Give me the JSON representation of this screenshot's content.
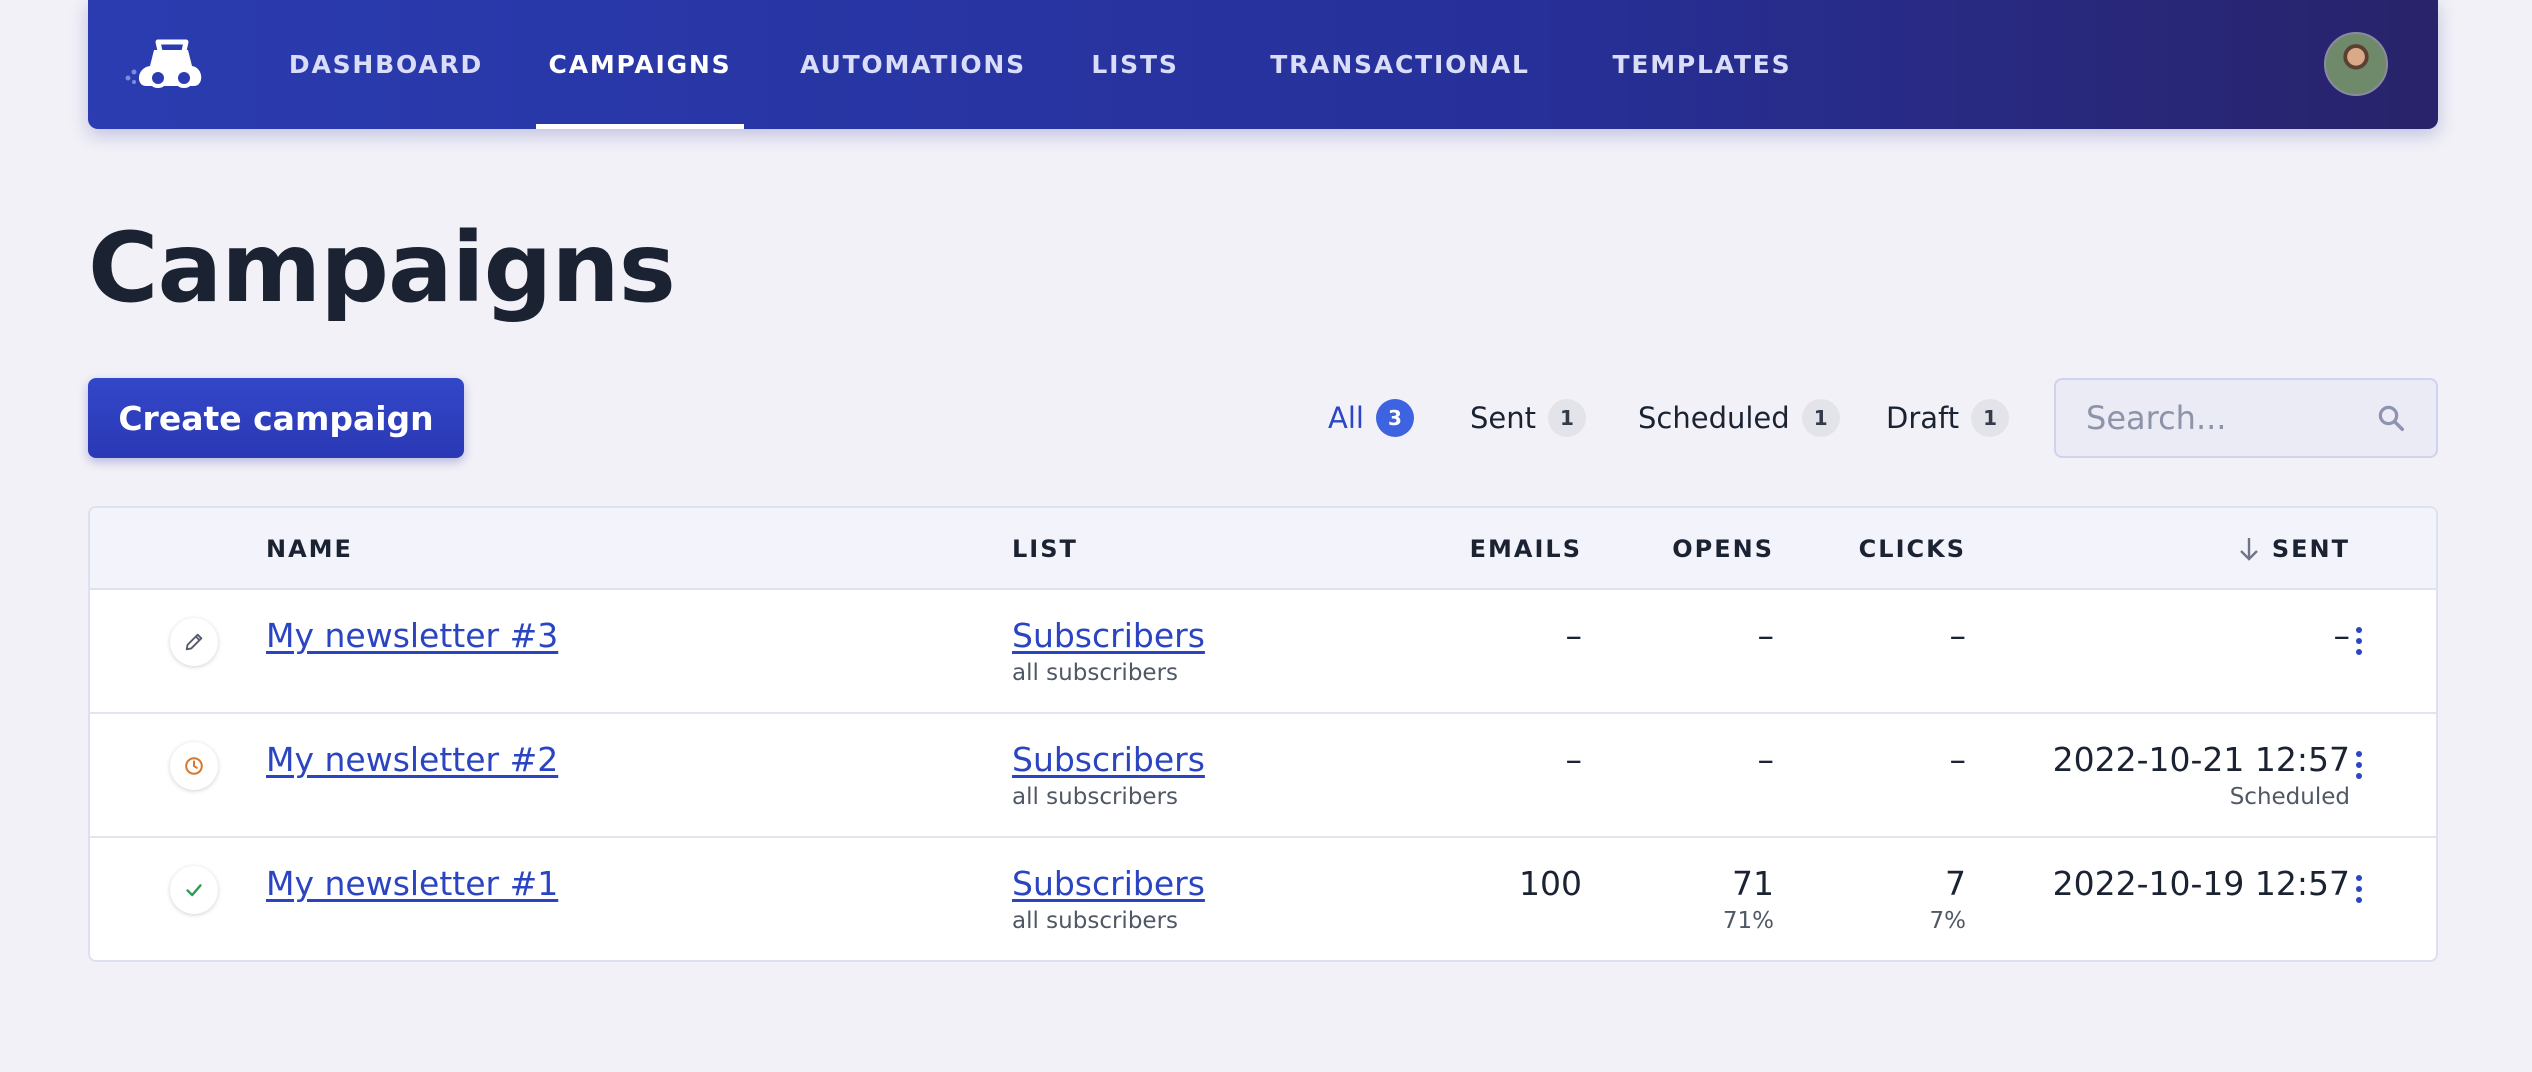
{
  "nav": {
    "items": [
      {
        "label": "DASHBOARD",
        "active": false
      },
      {
        "label": "CAMPAIGNS",
        "active": true
      },
      {
        "label": "AUTOMATIONS",
        "active": false
      },
      {
        "label": "LISTS",
        "active": false
      },
      {
        "label": "TRANSACTIONAL",
        "active": false
      },
      {
        "label": "TEMPLATES",
        "active": false
      }
    ],
    "logo_icon": "mailcoach-logo-icon",
    "avatar_icon": "user-avatar"
  },
  "page": {
    "title": "Campaigns",
    "create_button": "Create campaign"
  },
  "filters": [
    {
      "label": "All",
      "count": "3",
      "active": true
    },
    {
      "label": "Sent",
      "count": "1",
      "active": false
    },
    {
      "label": "Scheduled",
      "count": "1",
      "active": false
    },
    {
      "label": "Draft",
      "count": "1",
      "active": false
    }
  ],
  "search": {
    "placeholder": "Search...",
    "value": "",
    "icon": "search-icon"
  },
  "table": {
    "headers": {
      "name": "NAME",
      "list": "LIST",
      "emails": "EMAILS",
      "opens": "OPENS",
      "clicks": "CLICKS",
      "sent": "SENT"
    },
    "sort_icon": "arrow-down-icon",
    "rows": [
      {
        "status": "draft",
        "status_icon": "pencil-icon",
        "name": "My newsletter #3",
        "list": "Subscribers",
        "segment": "all subscribers",
        "emails": "–",
        "opens": "–",
        "opens_pct": "",
        "clicks": "–",
        "clicks_pct": "",
        "sent": "–",
        "sent_note": ""
      },
      {
        "status": "scheduled",
        "status_icon": "clock-icon",
        "name": "My newsletter #2",
        "list": "Subscribers",
        "segment": "all subscribers",
        "emails": "–",
        "opens": "–",
        "opens_pct": "",
        "clicks": "–",
        "clicks_pct": "",
        "sent": "2022-10-21 12:57",
        "sent_note": "Scheduled"
      },
      {
        "status": "sent",
        "status_icon": "check-icon",
        "name": "My newsletter #1",
        "list": "Subscribers",
        "segment": "all subscribers",
        "emails": "100",
        "opens": "71",
        "opens_pct": "71%",
        "clicks": "7",
        "clicks_pct": "7%",
        "sent": "2022-10-19 12:57",
        "sent_note": ""
      }
    ]
  },
  "colors": {
    "accent": "#2a44c2",
    "nav_start": "#2a3cb0",
    "nav_end": "#28236a",
    "draft": "#555b6a",
    "scheduled": "#d9782b",
    "sent": "#2f9a5a"
  }
}
